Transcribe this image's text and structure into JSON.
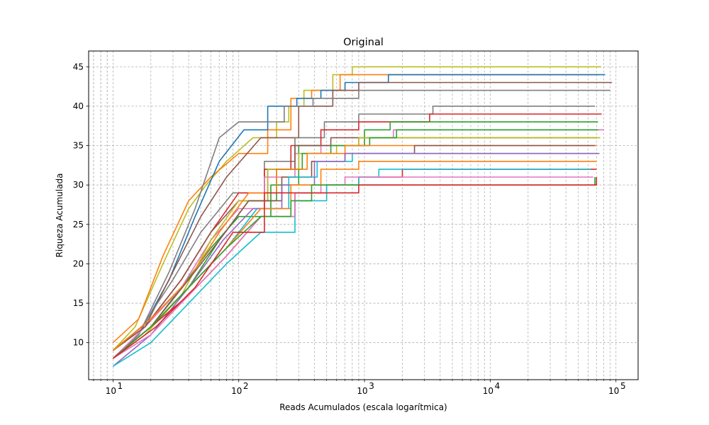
{
  "chart_data": {
    "type": "line",
    "title": "Original",
    "xlabel": "Reads Acumulados (escala logarítmica)",
    "ylabel": "Riqueza Acumulada",
    "x_scale": "log",
    "xlim": [
      6.4,
      150000
    ],
    "ylim": [
      5.3,
      47
    ],
    "x_ticks": [
      10,
      100,
      1000,
      10000,
      100000
    ],
    "x_tick_labels": [
      {
        "base": "10",
        "exp": "1"
      },
      {
        "base": "10",
        "exp": "2"
      },
      {
        "base": "10",
        "exp": "3"
      },
      {
        "base": "10",
        "exp": "4"
      },
      {
        "base": "10",
        "exp": "5"
      }
    ],
    "y_ticks": [
      10,
      15,
      20,
      25,
      30,
      35,
      40,
      45
    ],
    "y_tick_labels": [
      "10",
      "15",
      "20",
      "25",
      "30",
      "35",
      "40",
      "45"
    ],
    "grid": true,
    "series": [
      {
        "color": "#bcbd22",
        "points": [
          [
            10,
            9
          ],
          [
            15,
            12
          ],
          [
            25,
            20
          ],
          [
            40,
            27
          ],
          [
            55,
            30
          ],
          [
            80,
            33
          ],
          [
            130,
            36
          ],
          [
            200,
            38
          ],
          [
            250,
            40
          ],
          [
            330,
            42
          ],
          [
            560,
            44
          ],
          [
            800,
            45
          ],
          [
            76000,
            45
          ]
        ]
      },
      {
        "color": "#ff7f0e",
        "points": [
          [
            10,
            10
          ],
          [
            16,
            13
          ],
          [
            25,
            21
          ],
          [
            40,
            28
          ],
          [
            60,
            31
          ],
          [
            100,
            34
          ],
          [
            170,
            37
          ],
          [
            260,
            41
          ],
          [
            380,
            42
          ],
          [
            640,
            44
          ],
          [
            1000,
            44
          ],
          [
            73000,
            44
          ]
        ]
      },
      {
        "color": "#1f77b4",
        "points": [
          [
            10,
            8
          ],
          [
            16,
            11
          ],
          [
            28,
            18
          ],
          [
            45,
            26
          ],
          [
            70,
            33
          ],
          [
            110,
            37
          ],
          [
            170,
            40
          ],
          [
            290,
            41
          ],
          [
            450,
            42
          ],
          [
            700,
            43
          ],
          [
            1550,
            44
          ],
          [
            82000,
            44
          ]
        ]
      },
      {
        "color": "#8c564b",
        "points": [
          [
            10,
            9
          ],
          [
            18,
            12
          ],
          [
            30,
            19
          ],
          [
            50,
            26
          ],
          [
            80,
            31
          ],
          [
            150,
            36
          ],
          [
            300,
            40
          ],
          [
            560,
            42
          ],
          [
            900,
            43
          ],
          [
            93000,
            43
          ]
        ]
      },
      {
        "color": "#7f7f7f",
        "points": [
          [
            10,
            8
          ],
          [
            16,
            11
          ],
          [
            28,
            19
          ],
          [
            45,
            27
          ],
          [
            70,
            36
          ],
          [
            100,
            38
          ],
          [
            230,
            40
          ],
          [
            390,
            41
          ],
          [
            900,
            42
          ],
          [
            1200,
            42
          ],
          [
            90000,
            42
          ]
        ]
      },
      {
        "color": "#7f7f7f",
        "points": [
          [
            10,
            9
          ],
          [
            17,
            12
          ],
          [
            30,
            18
          ],
          [
            50,
            24
          ],
          [
            90,
            29
          ],
          [
            160,
            33
          ],
          [
            280,
            36
          ],
          [
            480,
            38
          ],
          [
            900,
            39
          ],
          [
            3500,
            40
          ],
          [
            68000,
            40
          ]
        ]
      },
      {
        "color": "#d62728",
        "points": [
          [
            10,
            9
          ],
          [
            20,
            13
          ],
          [
            35,
            18
          ],
          [
            60,
            24
          ],
          [
            100,
            29
          ],
          [
            160,
            32
          ],
          [
            260,
            35
          ],
          [
            450,
            37
          ],
          [
            900,
            38
          ],
          [
            3300,
            39
          ],
          [
            77000,
            39
          ]
        ]
      },
      {
        "color": "#2ca02c",
        "points": [
          [
            10,
            8
          ],
          [
            20,
            12
          ],
          [
            35,
            17
          ],
          [
            60,
            22
          ],
          [
            100,
            26
          ],
          [
            180,
            30
          ],
          [
            300,
            35
          ],
          [
            1000,
            37
          ],
          [
            1600,
            38
          ],
          [
            72000,
            38
          ]
        ]
      },
      {
        "color": "#e377c2",
        "points": [
          [
            10,
            8
          ],
          [
            18,
            12
          ],
          [
            35,
            17
          ],
          [
            60,
            23
          ],
          [
            100,
            27
          ],
          [
            160,
            31
          ],
          [
            280,
            34
          ],
          [
            450,
            35
          ],
          [
            900,
            36
          ],
          [
            1700,
            37
          ],
          [
            80000,
            37
          ]
        ]
      },
      {
        "color": "#8c564b",
        "points": [
          [
            10,
            9
          ],
          [
            18,
            12
          ],
          [
            35,
            18
          ],
          [
            60,
            24
          ],
          [
            100,
            28
          ],
          [
            170,
            32
          ],
          [
            280,
            35
          ],
          [
            540,
            36
          ],
          [
            800,
            36
          ],
          [
            70000,
            36
          ]
        ]
      },
      {
        "color": "#bcbd22",
        "points": [
          [
            10,
            8
          ],
          [
            18,
            11
          ],
          [
            35,
            16
          ],
          [
            60,
            23
          ],
          [
            100,
            28
          ],
          [
            170,
            32
          ],
          [
            300,
            34
          ],
          [
            600,
            35
          ],
          [
            900,
            36
          ],
          [
            75000,
            36
          ]
        ]
      },
      {
        "color": "#2ca02c",
        "points": [
          [
            10,
            8
          ],
          [
            20,
            12
          ],
          [
            40,
            17
          ],
          [
            70,
            23
          ],
          [
            120,
            28
          ],
          [
            200,
            32
          ],
          [
            320,
            34
          ],
          [
            540,
            35
          ],
          [
            1100,
            36
          ],
          [
            1800,
            37
          ],
          [
            72000,
            37
          ]
        ]
      },
      {
        "color": "#ff7f0e",
        "points": [
          [
            10,
            9
          ],
          [
            20,
            13
          ],
          [
            40,
            18
          ],
          [
            70,
            24
          ],
          [
            120,
            29
          ],
          [
            200,
            32
          ],
          [
            350,
            34
          ],
          [
            700,
            35
          ],
          [
            1300,
            35
          ],
          [
            70000,
            35
          ]
        ]
      },
      {
        "color": "#8c564b",
        "points": [
          [
            10,
            8
          ],
          [
            20,
            12
          ],
          [
            40,
            18
          ],
          [
            70,
            23
          ],
          [
            120,
            28
          ],
          [
            220,
            31
          ],
          [
            380,
            33
          ],
          [
            700,
            34
          ],
          [
            2500,
            35
          ],
          [
            68000,
            35
          ]
        ]
      },
      {
        "color": "#17becf",
        "points": [
          [
            10,
            8
          ],
          [
            20,
            12
          ],
          [
            40,
            17
          ],
          [
            80,
            22
          ],
          [
            140,
            27
          ],
          [
            250,
            31
          ],
          [
            420,
            33
          ],
          [
            800,
            34
          ],
          [
            1200,
            34
          ],
          [
            70000,
            34
          ]
        ]
      },
      {
        "color": "#9467bd",
        "points": [
          [
            10,
            7
          ],
          [
            20,
            11
          ],
          [
            40,
            17
          ],
          [
            75,
            23
          ],
          [
            130,
            27
          ],
          [
            220,
            30
          ],
          [
            400,
            33
          ],
          [
            700,
            34
          ],
          [
            1000,
            34
          ],
          [
            74000,
            34
          ]
        ]
      },
      {
        "color": "#ff7f0e",
        "points": [
          [
            10,
            8
          ],
          [
            20,
            12
          ],
          [
            40,
            17
          ],
          [
            80,
            22
          ],
          [
            150,
            27
          ],
          [
            260,
            30
          ],
          [
            450,
            32
          ],
          [
            900,
            33
          ],
          [
            70000,
            33
          ]
        ]
      },
      {
        "color": "#d62728",
        "points": [
          [
            10,
            8
          ],
          [
            20,
            12
          ],
          [
            40,
            16
          ],
          [
            80,
            21
          ],
          [
            150,
            26
          ],
          [
            280,
            29
          ],
          [
            500,
            30
          ],
          [
            900,
            31
          ],
          [
            2000,
            32
          ],
          [
            70000,
            32
          ]
        ]
      },
      {
        "color": "#17becf",
        "points": [
          [
            10,
            7
          ],
          [
            20,
            10
          ],
          [
            40,
            15
          ],
          [
            80,
            20
          ],
          [
            150,
            24
          ],
          [
            280,
            28
          ],
          [
            500,
            30
          ],
          [
            900,
            31
          ],
          [
            1300,
            32
          ],
          [
            63000,
            32
          ]
        ]
      },
      {
        "color": "#e377c2",
        "points": [
          [
            10,
            8
          ],
          [
            20,
            11
          ],
          [
            40,
            16
          ],
          [
            80,
            21
          ],
          [
            150,
            26
          ],
          [
            280,
            29
          ],
          [
            450,
            30
          ],
          [
            700,
            31
          ],
          [
            20000,
            31
          ],
          [
            66000,
            31
          ]
        ]
      },
      {
        "color": "#2ca02c",
        "points": [
          [
            10,
            8
          ],
          [
            20,
            12
          ],
          [
            40,
            17
          ],
          [
            80,
            22
          ],
          [
            150,
            26
          ],
          [
            260,
            28
          ],
          [
            380,
            30
          ],
          [
            680,
            30
          ],
          [
            68000,
            31
          ]
        ]
      },
      {
        "color": "#d62728",
        "points": [
          [
            10,
            8
          ],
          [
            22,
            12
          ],
          [
            45,
            17
          ],
          [
            90,
            24
          ],
          [
            160,
            29
          ],
          [
            260,
            29
          ],
          [
            500,
            29
          ],
          [
            900,
            30
          ],
          [
            1400,
            30
          ],
          [
            70000,
            31
          ]
        ]
      }
    ]
  }
}
